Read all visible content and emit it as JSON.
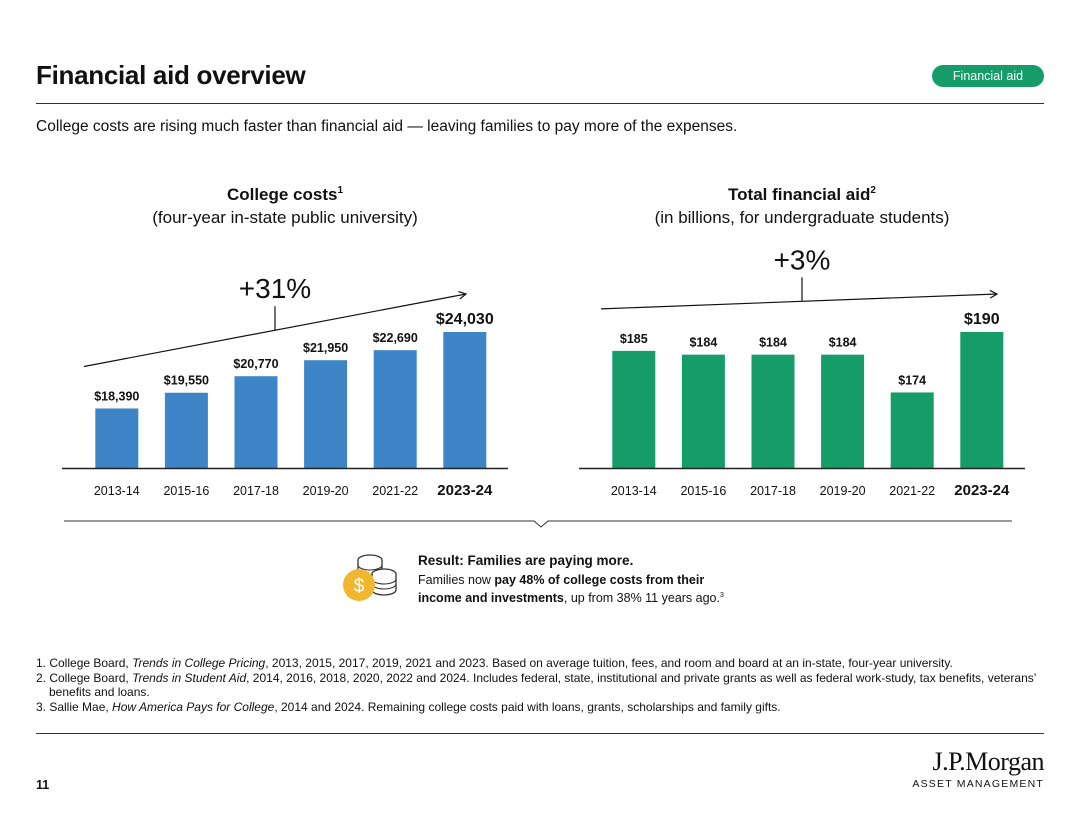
{
  "header": {
    "title": "Financial aid overview",
    "tag": "Financial aid",
    "subtitle": "College costs are rising much faster than financial aid — leaving families to pay more of the expenses."
  },
  "chart_data": [
    {
      "type": "bar",
      "title": "College costs",
      "title_note": "1",
      "subtitle": "(four-year in-state public university)",
      "change_label": "+31%",
      "categories": [
        "2013-14",
        "2015-16",
        "2017-18",
        "2019-20",
        "2021-22",
        "2023-24"
      ],
      "values": [
        18390,
        19550,
        20770,
        21950,
        22690,
        24030
      ],
      "value_labels": [
        "$18,390",
        "$19,550",
        "$20,770",
        "$21,950",
        "$22,690",
        "$24,030"
      ],
      "highlight_last": true,
      "color": "#3d85c6",
      "ylim": [
        14000,
        24030
      ]
    },
    {
      "type": "bar",
      "title": "Total financial aid",
      "title_note": "2",
      "subtitle": "(in billions, for undergraduate students)",
      "change_label": "+3%",
      "categories": [
        "2013-14",
        "2015-16",
        "2017-18",
        "2019-20",
        "2021-22",
        "2023-24"
      ],
      "values": [
        185,
        184,
        184,
        184,
        174,
        190
      ],
      "value_labels": [
        "$185",
        "$184",
        "$184",
        "$184",
        "$174",
        "$190"
      ],
      "highlight_last": true,
      "color": "#159c69",
      "ylim": [
        154,
        190
      ]
    }
  ],
  "result": {
    "icon": "coins-icon",
    "title": "Result: Families are paying more.",
    "body_pre": "Families now ",
    "body_bold": "pay 48% of college costs from their income and investments",
    "body_post": ", up from 38% 11 years ago.",
    "note": "3"
  },
  "footnotes": {
    "f1_pre": "1. College Board, ",
    "f1_italic": "Trends in College Pricing",
    "f1_post": ", 2013, 2015, 2017, 2019, 2021 and 2023. Based on average tuition, fees, and room and board at an in-state, four-year university.",
    "f2_pre": "2. College Board, ",
    "f2_italic": "Trends in Student Aid",
    "f2_post": ", 2014, 2016, 2018, 2020, 2022 and 2024. Includes federal, state, institutional and private grants as well as federal work-study, tax benefits, veterans’ benefits and loans.",
    "f3_pre": "3. Sallie Mae, ",
    "f3_italic": "How America Pays for College",
    "f3_post": ", 2014 and 2024. Remaining college costs paid with loans, grants, scholarships and family gifts."
  },
  "footer": {
    "page_number": "11",
    "logo_name": "J.P.Morgan",
    "logo_sub": "ASSET MANAGEMENT"
  },
  "colors": {
    "accent_green": "#159c69",
    "bar_blue": "#3d85c6",
    "coin_gold": "#f2b731"
  }
}
